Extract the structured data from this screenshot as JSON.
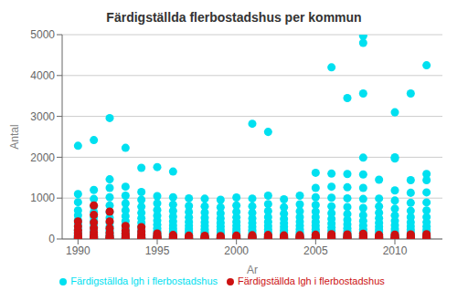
{
  "chart_data": {
    "type": "scatter",
    "title": "Färdigställda flerbostadshus per kommun",
    "x_label": "Ar",
    "y_label": "Antal",
    "xlim": [
      1989.0,
      2013.0
    ],
    "ylim": [
      0,
      5000
    ],
    "xticks": [
      1990,
      1995,
      2000,
      2005,
      2010
    ],
    "yticks": [
      0,
      1000,
      2000,
      3000,
      4000,
      5000
    ],
    "grid": true,
    "legend": "bottom",
    "series": [
      {
        "name": "Färdigställda lgh i flerbostadshus",
        "color": "#00e0f0",
        "x": [
          1990,
          1990,
          1990,
          1990,
          1990,
          1990,
          1990,
          1990,
          1990,
          1990,
          1990,
          1990,
          1990,
          1990,
          1990,
          1990,
          1990,
          1991,
          1991,
          1991,
          1991,
          1991,
          1991,
          1991,
          1991,
          1991,
          1991,
          1991,
          1991,
          1991,
          1991,
          1991,
          1991,
          1991,
          1992,
          1992,
          1992,
          1992,
          1992,
          1992,
          1992,
          1992,
          1992,
          1992,
          1992,
          1992,
          1992,
          1992,
          1992,
          1992,
          1992,
          1993,
          1993,
          1993,
          1993,
          1993,
          1993,
          1993,
          1993,
          1993,
          1993,
          1993,
          1993,
          1993,
          1993,
          1993,
          1993,
          1994,
          1994,
          1994,
          1994,
          1994,
          1994,
          1994,
          1994,
          1994,
          1994,
          1994,
          1994,
          1994,
          1994,
          1994,
          1995,
          1995,
          1995,
          1995,
          1995,
          1995,
          1995,
          1995,
          1995,
          1995,
          1995,
          1995,
          1995,
          1995,
          1995,
          1996,
          1996,
          1996,
          1996,
          1996,
          1996,
          1996,
          1996,
          1996,
          1996,
          1996,
          1996,
          1996,
          1996,
          1996,
          1997,
          1997,
          1997,
          1997,
          1997,
          1997,
          1997,
          1997,
          1997,
          1997,
          1997,
          1997,
          1997,
          1997,
          1998,
          1998,
          1998,
          1998,
          1998,
          1998,
          1998,
          1998,
          1998,
          1998,
          1998,
          1998,
          1998,
          1998,
          1999,
          1999,
          1999,
          1999,
          1999,
          1999,
          1999,
          1999,
          1999,
          1999,
          1999,
          1999,
          1999,
          1999,
          2000,
          2000,
          2000,
          2000,
          2000,
          2000,
          2000,
          2000,
          2000,
          2000,
          2000,
          2000,
          2000,
          2000,
          2001,
          2001,
          2001,
          2001,
          2001,
          2001,
          2001,
          2001,
          2001,
          2001,
          2001,
          2001,
          2001,
          2001,
          2001,
          2002,
          2002,
          2002,
          2002,
          2002,
          2002,
          2002,
          2002,
          2002,
          2002,
          2002,
          2002,
          2002,
          2002,
          2002,
          2003,
          2003,
          2003,
          2003,
          2003,
          2003,
          2003,
          2003,
          2003,
          2003,
          2003,
          2003,
          2003,
          2003,
          2004,
          2004,
          2004,
          2004,
          2004,
          2004,
          2004,
          2004,
          2004,
          2004,
          2004,
          2004,
          2004,
          2004,
          2005,
          2005,
          2005,
          2005,
          2005,
          2005,
          2005,
          2005,
          2005,
          2005,
          2005,
          2005,
          2005,
          2005,
          2005,
          2005,
          2006,
          2006,
          2006,
          2006,
          2006,
          2006,
          2006,
          2006,
          2006,
          2006,
          2006,
          2006,
          2006,
          2006,
          2006,
          2006,
          2007,
          2007,
          2007,
          2007,
          2007,
          2007,
          2007,
          2007,
          2007,
          2007,
          2007,
          2007,
          2007,
          2007,
          2007,
          2007,
          2008,
          2008,
          2008,
          2008,
          2008,
          2008,
          2008,
          2008,
          2008,
          2008,
          2008,
          2008,
          2008,
          2008,
          2008,
          2008,
          2008,
          2008,
          2008,
          2009,
          2009,
          2009,
          2009,
          2009,
          2009,
          2009,
          2009,
          2009,
          2009,
          2009,
          2009,
          2009,
          2009,
          2009,
          2010,
          2010,
          2010,
          2010,
          2010,
          2010,
          2010,
          2010,
          2010,
          2010,
          2010,
          2010,
          2010,
          2010,
          2010,
          2010,
          2010,
          2011,
          2011,
          2011,
          2011,
          2011,
          2011,
          2011,
          2011,
          2011,
          2011,
          2011,
          2011,
          2011,
          2011,
          2011,
          2011,
          2012,
          2012,
          2012,
          2012,
          2012,
          2012,
          2012,
          2012,
          2012,
          2012,
          2012,
          2012,
          2012,
          2012,
          2012,
          2012,
          2012
        ],
        "values": [
          2280,
          1100,
          900,
          700,
          580,
          460,
          380,
          310,
          240,
          190,
          150,
          110,
          80,
          55,
          35,
          20,
          10,
          2420,
          1200,
          980,
          800,
          660,
          540,
          440,
          360,
          280,
          210,
          160,
          115,
          78,
          50,
          28,
          14,
          6,
          2960,
          1460,
          1250,
          1020,
          820,
          660,
          520,
          400,
          300,
          220,
          160,
          110,
          72,
          44,
          24,
          12,
          5,
          2230,
          1280,
          1060,
          870,
          700,
          560,
          440,
          340,
          255,
          185,
          130,
          86,
          54,
          30,
          15,
          7,
          1740,
          1150,
          960,
          790,
          640,
          510,
          400,
          305,
          225,
          160,
          108,
          68,
          40,
          21,
          9,
          1760,
          1050,
          870,
          710,
          570,
          450,
          350,
          265,
          193,
          136,
          90,
          56,
          32,
          16,
          7,
          1650,
          1020,
          840,
          685,
          548,
          430,
          333,
          250,
          182,
          128,
          85,
          53,
          30,
          15,
          6,
          995,
          810,
          660,
          530,
          420,
          325,
          245,
          178,
          124,
          82,
          51,
          29,
          14,
          6,
          985,
          800,
          650,
          520,
          410,
          318,
          239,
          173,
          120,
          79,
          49,
          27,
          13,
          5,
          960,
          775,
          628,
          502,
          395,
          306,
          230,
          166,
          115,
          76,
          47,
          26,
          12,
          5,
          1015,
          820,
          665,
          532,
          418,
          323,
          243,
          176,
          122,
          81,
          50,
          28,
          13,
          5,
          2820,
          990,
          800,
          640,
          505,
          392,
          298,
          220,
          157,
          108,
          70,
          43,
          24,
          11,
          4,
          2620,
          1060,
          855,
          683,
          538,
          418,
          318,
          234,
          167,
          115,
          74,
          45,
          25,
          11,
          4,
          970,
          775,
          620,
          492,
          386,
          296,
          220,
          158,
          109,
          71,
          44,
          24,
          11,
          4,
          1060,
          848,
          677,
          537,
          422,
          324,
          242,
          175,
          122,
          80,
          49,
          27,
          13,
          5,
          1620,
          1250,
          1020,
          830,
          670,
          535,
          420,
          323,
          240,
          172,
          119,
          78,
          48,
          27,
          13,
          5,
          4200,
          1600,
          1280,
          1010,
          800,
          630,
          493,
          378,
          282,
          204,
          143,
          96,
          61,
          36,
          19,
          8,
          3450,
          1590,
          1265,
          995,
          783,
          611,
          471,
          358,
          265,
          189,
          130,
          86,
          54,
          31,
          16,
          7,
          4970,
          4800,
          3560,
          1990,
          1580,
          1250,
          980,
          760,
          583,
          441,
          328,
          238,
          168,
          115,
          76,
          47,
          27,
          14,
          6,
          1450,
          990,
          800,
          641,
          508,
          396,
          302,
          224,
          161,
          111,
          73,
          45,
          25,
          12,
          5,
          3100,
          2000,
          1970,
          1190,
          940,
          740,
          577,
          444,
          336,
          248,
          178,
          123,
          82,
          51,
          29,
          14,
          6,
          3560,
          1440,
          1130,
          885,
          690,
          535,
          410,
          310,
          228,
          163,
          113,
          75,
          47,
          27,
          13,
          5,
          4250,
          1590,
          1440,
          1140,
          895,
          697,
          538,
          411,
          308,
          225,
          160,
          110,
          72,
          45,
          25,
          12,
          5
        ]
      },
      {
        "name": "Färdigställda lgh i flerbostadshus",
        "color": "#cc1111",
        "x": [
          1990,
          1990,
          1990,
          1990,
          1990,
          1990,
          1990,
          1990,
          1991,
          1991,
          1991,
          1991,
          1991,
          1991,
          1991,
          1991,
          1991,
          1991,
          1992,
          1992,
          1992,
          1992,
          1992,
          1992,
          1992,
          1992,
          1993,
          1993,
          1993,
          1993,
          1993,
          1993,
          1993,
          1994,
          1994,
          1994,
          1994,
          1994,
          1994,
          1994,
          1995,
          1995,
          1995,
          1995,
          1995,
          1995,
          1996,
          1996,
          1996,
          1996,
          1996,
          1997,
          1997,
          1997,
          1997,
          1997,
          1998,
          1998,
          1998,
          1998,
          1998,
          1999,
          1999,
          1999,
          1999,
          1999,
          2000,
          2000,
          2000,
          2000,
          2000,
          2001,
          2001,
          2001,
          2001,
          2001,
          2002,
          2002,
          2002,
          2002,
          2002,
          2003,
          2003,
          2003,
          2003,
          2003,
          2004,
          2004,
          2004,
          2004,
          2004,
          2005,
          2005,
          2005,
          2005,
          2005,
          2006,
          2006,
          2006,
          2006,
          2006,
          2007,
          2007,
          2007,
          2007,
          2007,
          2008,
          2008,
          2008,
          2008,
          2008,
          2009,
          2009,
          2009,
          2009,
          2009,
          2010,
          2010,
          2010,
          2010,
          2010,
          2011,
          2011,
          2011,
          2011,
          2011,
          2012,
          2012,
          2012,
          2012,
          2012
        ],
        "values": [
          430,
          310,
          215,
          144,
          90,
          52,
          26,
          10,
          820,
          590,
          405,
          268,
          170,
          103,
          59,
          31,
          14,
          5,
          670,
          430,
          263,
          153,
          82,
          39,
          16,
          5,
          320,
          205,
          126,
          74,
          40,
          19,
          7,
          290,
          185,
          113,
          65,
          34,
          16,
          6,
          135,
          85,
          51,
          28,
          14,
          5,
          98,
          62,
          37,
          20,
          9,
          82,
          51,
          30,
          16,
          7,
          77,
          48,
          28,
          15,
          6,
          74,
          46,
          27,
          14,
          6,
          82,
          51,
          30,
          16,
          7,
          92,
          58,
          34,
          18,
          8,
          98,
          62,
          37,
          20,
          9,
          87,
          54,
          32,
          17,
          7,
          92,
          58,
          34,
          18,
          8,
          103,
          65,
          39,
          21,
          9,
          118,
          75,
          45,
          25,
          11,
          113,
          72,
          43,
          23,
          10,
          128,
          82,
          50,
          28,
          12,
          98,
          62,
          37,
          20,
          9,
          108,
          68,
          41,
          22,
          9,
          113,
          72,
          43,
          23,
          10,
          118,
          75,
          45,
          25,
          11
        ]
      }
    ]
  }
}
